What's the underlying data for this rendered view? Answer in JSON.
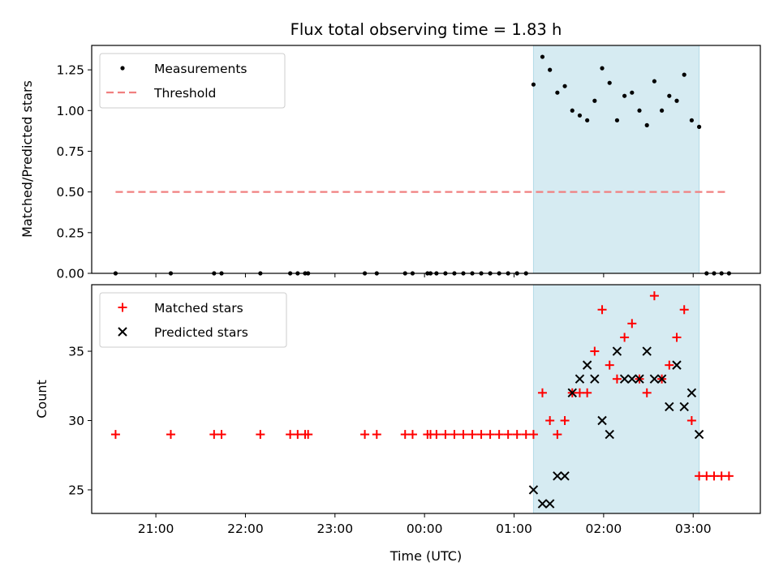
{
  "figure": {
    "title": "Flux total observing time = 1.83 h",
    "xlabel": "Time (UTC)"
  },
  "chart_data": [
    {
      "type": "scatter",
      "panel": "top",
      "ylabel": "Matched/Predicted stars",
      "ylim": [
        0,
        1.4
      ],
      "xlim": [
        "20:17",
        "03:45"
      ],
      "yticks": [
        "0.00",
        "0.25",
        "0.50",
        "0.75",
        "1.00",
        "1.25"
      ],
      "ytick_values": [
        0,
        0.25,
        0.5,
        0.75,
        1.0,
        1.25
      ],
      "legend": {
        "placement": "upper-left",
        "entries": [
          {
            "label": "Measurements",
            "marker": "dot",
            "color": "#000000"
          },
          {
            "label": "Threshold",
            "marker": "dashed-line",
            "color": "#f08080"
          }
        ]
      },
      "shaded_span": {
        "from": "01:13",
        "to": "03:04",
        "color": "#add8e6"
      },
      "threshold": {
        "y": 0.5,
        "x_from": "20:33",
        "x_to": "03:24"
      },
      "series": [
        {
          "name": "Measurements",
          "points": [
            [
              "20:33",
              0.0
            ],
            [
              "21:10",
              0.0
            ],
            [
              "21:39",
              0.0
            ],
            [
              "21:44",
              0.0
            ],
            [
              "22:10",
              0.0
            ],
            [
              "22:30",
              0.0
            ],
            [
              "22:35",
              0.0
            ],
            [
              "22:40",
              0.0
            ],
            [
              "22:42",
              0.0
            ],
            [
              "23:20",
              0.0
            ],
            [
              "23:28",
              0.0
            ],
            [
              "23:47",
              0.0
            ],
            [
              "23:52",
              0.0
            ],
            [
              "00:02",
              0.0
            ],
            [
              "00:04",
              0.0
            ],
            [
              "00:08",
              0.0
            ],
            [
              "00:14",
              0.0
            ],
            [
              "00:20",
              0.0
            ],
            [
              "00:26",
              0.0
            ],
            [
              "00:32",
              0.0
            ],
            [
              "00:38",
              0.0
            ],
            [
              "00:44",
              0.0
            ],
            [
              "00:50",
              0.0
            ],
            [
              "00:56",
              0.0
            ],
            [
              "01:02",
              0.0
            ],
            [
              "01:08",
              0.0
            ],
            [
              "01:13",
              1.16
            ],
            [
              "01:19",
              1.33
            ],
            [
              "01:24",
              1.25
            ],
            [
              "01:29",
              1.11
            ],
            [
              "01:34",
              1.15
            ],
            [
              "01:39",
              1.0
            ],
            [
              "01:44",
              0.97
            ],
            [
              "01:49",
              0.94
            ],
            [
              "01:54",
              1.06
            ],
            [
              "01:59",
              1.26
            ],
            [
              "02:04",
              1.17
            ],
            [
              "02:09",
              0.94
            ],
            [
              "02:14",
              1.09
            ],
            [
              "02:19",
              1.11
            ],
            [
              "02:24",
              1.0
            ],
            [
              "02:29",
              0.91
            ],
            [
              "02:34",
              1.18
            ],
            [
              "02:39",
              1.0
            ],
            [
              "02:44",
              1.09
            ],
            [
              "02:49",
              1.06
            ],
            [
              "02:54",
              1.22
            ],
            [
              "02:59",
              0.94
            ],
            [
              "03:04",
              0.9
            ],
            [
              "03:09",
              0.0
            ],
            [
              "03:14",
              0.0
            ],
            [
              "03:19",
              0.0
            ],
            [
              "03:24",
              0.0
            ]
          ]
        }
      ]
    },
    {
      "type": "scatter",
      "panel": "bottom",
      "ylabel": "Count",
      "xlabel": "Time (UTC)",
      "ylim": [
        23.3,
        39.8
      ],
      "xlim": [
        "20:17",
        "03:45"
      ],
      "yticks": [
        "25",
        "30",
        "35"
      ],
      "ytick_values": [
        25,
        30,
        35
      ],
      "xticks": [
        "21:00",
        "22:00",
        "23:00",
        "00:00",
        "01:00",
        "02:00",
        "03:00"
      ],
      "legend": {
        "placement": "upper-left",
        "entries": [
          {
            "label": "Matched stars",
            "marker": "plus",
            "color": "#ff0000"
          },
          {
            "label": "Predicted stars",
            "marker": "x",
            "color": "#000000"
          }
        ]
      },
      "shaded_span": {
        "from": "01:13",
        "to": "03:04",
        "color": "#add8e6"
      },
      "series": [
        {
          "name": "Matched stars",
          "points": [
            [
              "20:33",
              29
            ],
            [
              "21:10",
              29
            ],
            [
              "21:39",
              29
            ],
            [
              "21:44",
              29
            ],
            [
              "22:10",
              29
            ],
            [
              "22:30",
              29
            ],
            [
              "22:35",
              29
            ],
            [
              "22:40",
              29
            ],
            [
              "22:42",
              29
            ],
            [
              "23:20",
              29
            ],
            [
              "23:28",
              29
            ],
            [
              "23:47",
              29
            ],
            [
              "23:52",
              29
            ],
            [
              "00:02",
              29
            ],
            [
              "00:04",
              29
            ],
            [
              "00:08",
              29
            ],
            [
              "00:14",
              29
            ],
            [
              "00:20",
              29
            ],
            [
              "00:26",
              29
            ],
            [
              "00:32",
              29
            ],
            [
              "00:38",
              29
            ],
            [
              "00:44",
              29
            ],
            [
              "00:50",
              29
            ],
            [
              "00:56",
              29
            ],
            [
              "01:02",
              29
            ],
            [
              "01:08",
              29
            ],
            [
              "01:13",
              29
            ],
            [
              "01:19",
              32
            ],
            [
              "01:24",
              30
            ],
            [
              "01:29",
              29
            ],
            [
              "01:34",
              30
            ],
            [
              "01:39",
              32
            ],
            [
              "01:44",
              32
            ],
            [
              "01:49",
              32
            ],
            [
              "01:54",
              35
            ],
            [
              "01:59",
              38
            ],
            [
              "02:04",
              34
            ],
            [
              "02:09",
              33
            ],
            [
              "02:14",
              36
            ],
            [
              "02:19",
              37
            ],
            [
              "02:24",
              33
            ],
            [
              "02:29",
              32
            ],
            [
              "02:34",
              39
            ],
            [
              "02:39",
              33
            ],
            [
              "02:44",
              34
            ],
            [
              "02:49",
              36
            ],
            [
              "02:54",
              38
            ],
            [
              "02:59",
              30
            ],
            [
              "03:04",
              26
            ],
            [
              "03:09",
              26
            ],
            [
              "03:14",
              26
            ],
            [
              "03:19",
              26
            ],
            [
              "03:24",
              26
            ]
          ]
        },
        {
          "name": "Predicted stars",
          "points": [
            [
              "01:13",
              25
            ],
            [
              "01:19",
              24
            ],
            [
              "01:24",
              24
            ],
            [
              "01:29",
              26
            ],
            [
              "01:34",
              26
            ],
            [
              "01:39",
              32
            ],
            [
              "01:44",
              33
            ],
            [
              "01:49",
              34
            ],
            [
              "01:54",
              33
            ],
            [
              "01:59",
              30
            ],
            [
              "02:04",
              29
            ],
            [
              "02:09",
              35
            ],
            [
              "02:14",
              33
            ],
            [
              "02:19",
              33
            ],
            [
              "02:24",
              33
            ],
            [
              "02:29",
              35
            ],
            [
              "02:34",
              33
            ],
            [
              "02:39",
              33
            ],
            [
              "02:44",
              31
            ],
            [
              "02:49",
              34
            ],
            [
              "02:54",
              31
            ],
            [
              "02:59",
              32
            ],
            [
              "03:04",
              29
            ]
          ]
        }
      ]
    }
  ]
}
